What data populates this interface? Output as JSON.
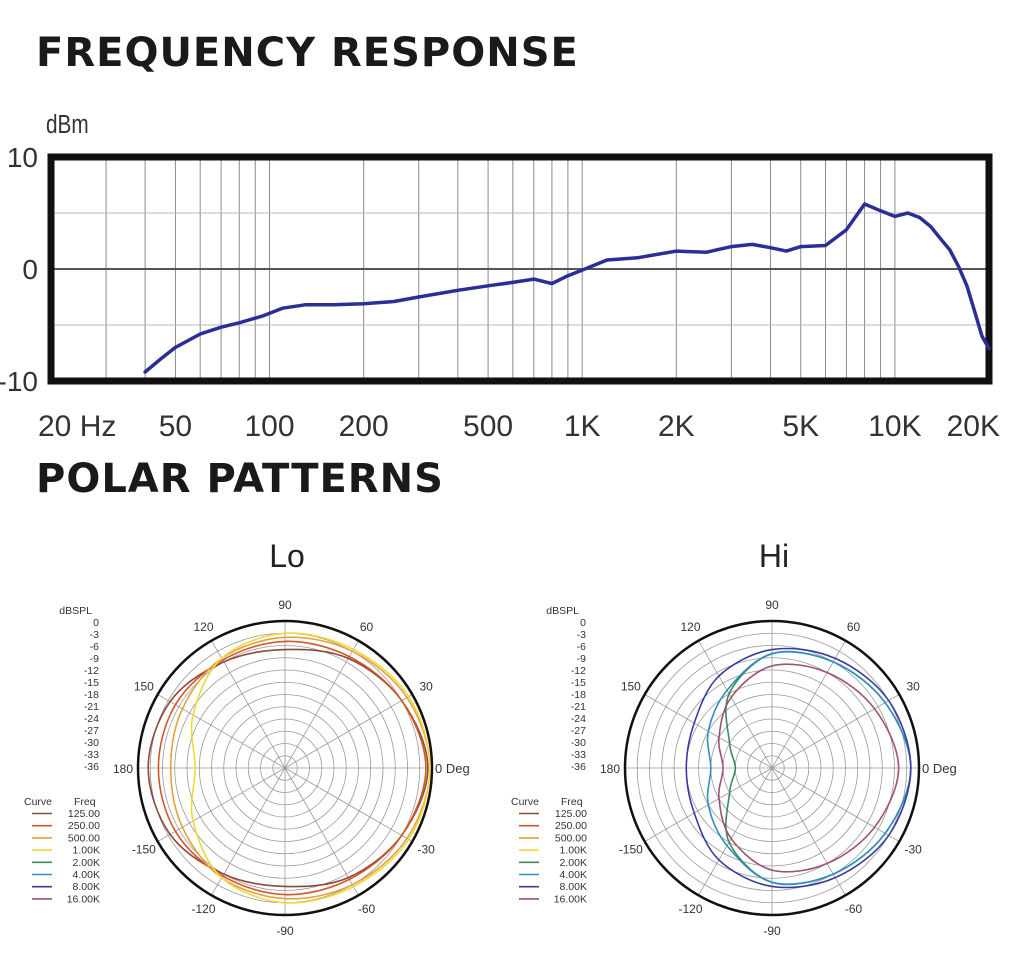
{
  "frequency_response": {
    "heading": "FREQUENCY RESPONSE",
    "ylabel": "dBm",
    "ytick_labels": [
      "10",
      "0",
      "-10"
    ],
    "xtick_labels": [
      "20 Hz",
      "50",
      "100",
      "200",
      "500",
      "1K",
      "2K",
      "5K",
      "10K",
      "20K"
    ]
  },
  "polar_patterns": {
    "heading": "POLAR PATTERNS",
    "angle_labels": [
      "0 Deg",
      "30",
      "60",
      "90",
      "120",
      "150",
      "180",
      "-150",
      "-120",
      "-90",
      "-60",
      "-30"
    ],
    "db_labels": [
      "dBSPL",
      "0",
      "-3",
      "-6",
      "-9",
      "-12",
      "-15",
      "-18",
      "-21",
      "-24",
      "-27",
      "-30",
      "-33",
      "-36"
    ],
    "legend_header": [
      "Curve",
      "Freq"
    ],
    "legend": [
      {
        "freq": "125.00",
        "color": "#8b4a3a"
      },
      {
        "freq": "250.00",
        "color": "#d2582a"
      },
      {
        "freq": "500.00",
        "color": "#e3a23a"
      },
      {
        "freq": "1.00K",
        "color": "#f2d83a"
      },
      {
        "freq": "2.00K",
        "color": "#3e8a5a"
      },
      {
        "freq": "4.00K",
        "color": "#2f8fc0"
      },
      {
        "freq": "8.00K",
        "color": "#3a3aa0"
      },
      {
        "freq": "16.00K",
        "color": "#a0506a"
      }
    ]
  },
  "chart_data": [
    {
      "type": "line",
      "title": "FREQUENCY RESPONSE",
      "xlabel": "",
      "ylabel": "dBm",
      "xscale": "log",
      "xlim": [
        20,
        20000
      ],
      "ylim": [
        -10,
        10
      ],
      "grid": true,
      "series_color": "#2b2e95",
      "x": [
        40,
        45,
        50,
        60,
        70,
        80,
        95,
        110,
        130,
        160,
        200,
        250,
        300,
        400,
        500,
        600,
        700,
        800,
        900,
        1000,
        1200,
        1500,
        2000,
        2500,
        3000,
        3500,
        4000,
        4500,
        5000,
        6000,
        7000,
        8000,
        9000,
        10000,
        11000,
        12000,
        13000,
        14000,
        15000,
        16000,
        17000,
        18000,
        19000,
        20000
      ],
      "y": [
        -9.2,
        -8.0,
        -7.0,
        -5.8,
        -5.2,
        -4.8,
        -4.2,
        -3.5,
        -3.2,
        -3.2,
        -3.1,
        -2.9,
        -2.5,
        -1.9,
        -1.5,
        -1.2,
        -0.9,
        -1.3,
        -0.6,
        -0.1,
        0.8,
        1.0,
        1.6,
        1.5,
        2.0,
        2.2,
        1.9,
        1.6,
        2.0,
        2.1,
        3.5,
        5.8,
        5.2,
        4.7,
        5.0,
        4.6,
        3.8,
        2.7,
        1.7,
        0.2,
        -1.5,
        -3.8,
        -6.0,
        -7.1
      ]
    },
    {
      "type": "polar",
      "title": "Lo",
      "r_unit": "dBSPL",
      "rlim": [
        -36,
        0
      ],
      "angles": [
        0,
        30,
        60,
        90,
        120,
        150,
        180,
        -150,
        -120,
        -90,
        -60,
        -30
      ],
      "series": [
        {
          "name": "125.00",
          "color": "#8b4a3a",
          "values": [
            -1,
            -3,
            -5,
            -7,
            -6,
            -3.5,
            -2.5,
            -3.5,
            -6,
            -7,
            -5,
            -3
          ]
        },
        {
          "name": "250.00",
          "color": "#d2582a",
          "values": [
            -1.5,
            -3,
            -4.5,
            -5,
            -5.5,
            -5,
            -5,
            -5,
            -5.5,
            -5,
            -4.5,
            -3
          ]
        },
        {
          "name": "500.00",
          "color": "#e3a23a",
          "values": [
            -0.5,
            -1.5,
            -3,
            -4,
            -5,
            -7,
            -8,
            -7,
            -5,
            -4,
            -3,
            -1.5
          ]
        },
        {
          "name": "1.00K",
          "color": "#f2d83a",
          "values": [
            -0.5,
            -1,
            -2.5,
            -3,
            -5,
            -10,
            -14,
            -10,
            -5,
            -3,
            -2.5,
            -1
          ]
        }
      ]
    },
    {
      "type": "polar",
      "title": "Hi",
      "r_unit": "dBSPL",
      "rlim": [
        -36,
        0
      ],
      "angles": [
        0,
        30,
        60,
        90,
        120,
        150,
        180,
        -150,
        -120,
        -90,
        -60,
        -30
      ],
      "series": [
        {
          "name": "2.00K",
          "color": "#3e8a5a",
          "values": [
            -2,
            -4,
            -6,
            -8,
            -15,
            -24,
            -27,
            -24,
            -15,
            -8,
            -6,
            -4
          ]
        },
        {
          "name": "4.00K",
          "color": "#2f8fc0",
          "values": [
            -2,
            -4,
            -6,
            -8,
            -14,
            -18,
            -21,
            -18,
            -14,
            -8,
            -6,
            -4
          ]
        },
        {
          "name": "8.00K",
          "color": "#3a3aa0",
          "values": [
            -2,
            -3,
            -5,
            -7,
            -10,
            -14,
            -15,
            -14,
            -10,
            -7,
            -5,
            -3
          ]
        },
        {
          "name": "16.00K",
          "color": "#a0506a",
          "values": [
            -5,
            -7,
            -9,
            -11,
            -16,
            -21,
            -24,
            -21,
            -16,
            -11,
            -9,
            -7
          ]
        }
      ]
    }
  ]
}
